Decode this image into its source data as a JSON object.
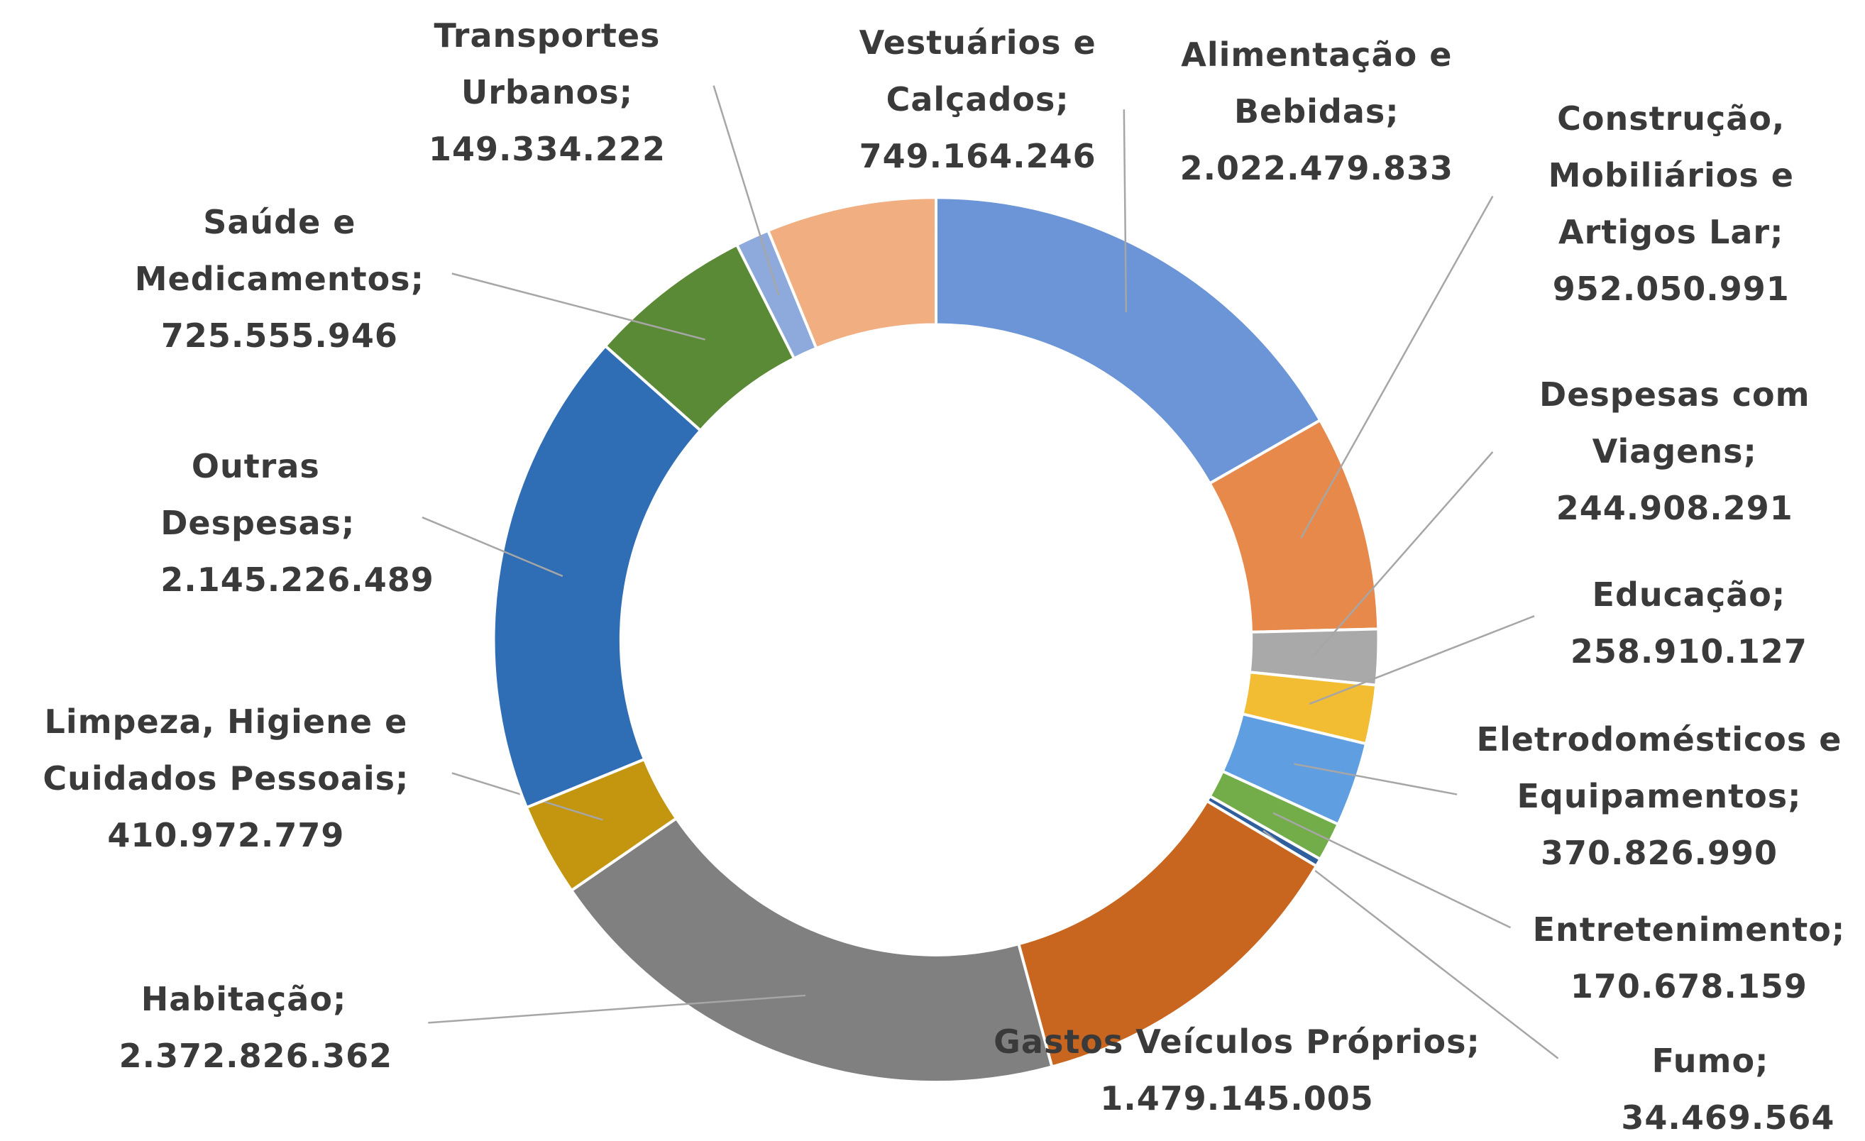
{
  "chart_data": {
    "type": "donut",
    "separator": ";",
    "categories": [
      "Alimentação e Bebidas",
      "Construção, Mobiliários e Artigos Lar",
      "Despesas com Viagens",
      "Educação",
      "Eletrodomésticos e Equipamentos",
      "Entretenimento",
      "Fumo",
      "Gastos Veículos Próprios",
      "Habitação",
      "Limpeza, Higiene e Cuidados Pessoais",
      "Outras Despesas",
      "Saúde e Medicamentos",
      "Transportes Urbanos",
      "Vestuários e Calçados"
    ],
    "values": [
      2022479833,
      952050991,
      244908291,
      258910127,
      370826990,
      170678159,
      34469564,
      1479145005,
      2372826362,
      410972779,
      2145226489,
      725555946,
      149334222,
      749164246
    ],
    "value_labels": [
      "2.022.479.833",
      "952.050.991",
      "244.908.291",
      "258.910.127",
      "370.826.990",
      "170.678.159",
      "34.469.564",
      "1.479.145.005",
      "2.372.826.362",
      "410.972.779",
      "2.145.226.489",
      "725.555.946",
      "149.334.222",
      "749.164.246"
    ],
    "colors": [
      "#6b95d6",
      "#e8894c",
      "#a9a9a9",
      "#f2bd32",
      "#5f9ee0",
      "#73ad4a",
      "#2f5f9c",
      "#c8651f",
      "#808080",
      "#c4960f",
      "#2f6db5",
      "#5a8a36",
      "#8eaadc",
      "#f1ae80"
    ]
  }
}
